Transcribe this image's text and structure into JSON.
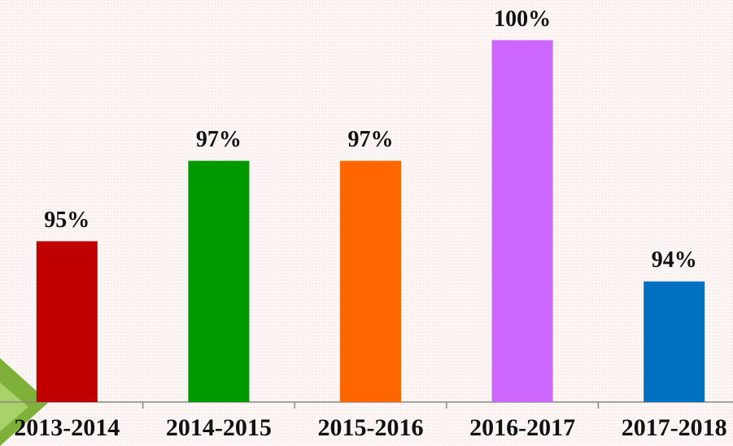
{
  "chart_data": {
    "type": "bar",
    "categories": [
      "2013-2014",
      "2014-2015",
      "2015-2016",
      "2016-2017",
      "2017-2018"
    ],
    "values": [
      95,
      97,
      97,
      100,
      94
    ],
    "value_labels": [
      "95%",
      "97%",
      "97%",
      "100%",
      "94%"
    ],
    "colors": [
      "#c00000",
      "#009900",
      "#ff6600",
      "#cc66ff",
      "#0070c0"
    ],
    "ylim": [
      91,
      101
    ]
  }
}
